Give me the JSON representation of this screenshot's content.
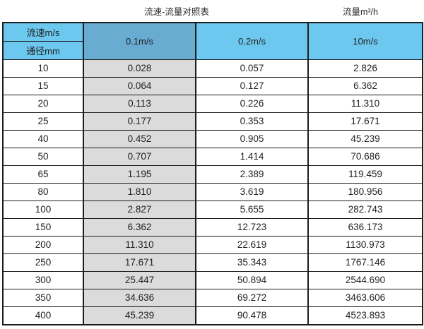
{
  "page": {
    "title_left": "流速-流量对照表",
    "title_right": "流量m³/h"
  },
  "table": {
    "corner": {
      "top": "流速m/s",
      "bottom": "通径mm"
    },
    "columns": [
      "0.1m/s",
      "0.2m/s",
      "10m/s"
    ],
    "rows": [
      {
        "dn": "10",
        "v1": "0.028",
        "v2": "0.057",
        "v3": "2.826"
      },
      {
        "dn": "15",
        "v1": "0.064",
        "v2": "0.127",
        "v3": "6.362"
      },
      {
        "dn": "20",
        "v1": "0.113",
        "v2": "0.226",
        "v3": "11.310"
      },
      {
        "dn": "25",
        "v1": "0.177",
        "v2": "0.353",
        "v3": "17.671"
      },
      {
        "dn": "40",
        "v1": "0.452",
        "v2": "0.905",
        "v3": "45.239"
      },
      {
        "dn": "50",
        "v1": "0.707",
        "v2": "1.414",
        "v3": "70.686"
      },
      {
        "dn": "65",
        "v1": "1.195",
        "v2": "2.389",
        "v3": "119.459"
      },
      {
        "dn": "80",
        "v1": "1.810",
        "v2": "3.619",
        "v3": "180.956"
      },
      {
        "dn": "100",
        "v1": "2.827",
        "v2": "5.655",
        "v3": "282.743"
      },
      {
        "dn": "150",
        "v1": "6.362",
        "v2": "12.723",
        "v3": "636.173"
      },
      {
        "dn": "200",
        "v1": "11.310",
        "v2": "22.619",
        "v3": "1130.973"
      },
      {
        "dn": "250",
        "v1": "17.671",
        "v2": "35.343",
        "v3": "1767.146"
      },
      {
        "dn": "300",
        "v1": "25.447",
        "v2": "50.894",
        "v3": "2544.690"
      },
      {
        "dn": "350",
        "v1": "34.636",
        "v2": "69.272",
        "v3": "3463.606"
      },
      {
        "dn": "400",
        "v1": "45.239",
        "v2": "90.478",
        "v3": "4523.893"
      }
    ]
  },
  "colors": {
    "header_blue": "#6cc8ee",
    "header_dark_blue": "#68acd2",
    "gray_column": "#dbdbdb",
    "border": "#1c1c1c"
  },
  "chart_data": {
    "type": "table",
    "title": "流速-流量对照表",
    "unit_label": "流量m³/h",
    "row_axis_label": "通径mm",
    "col_axis_label": "流速m/s",
    "categories": [
      10,
      15,
      20,
      25,
      40,
      50,
      65,
      80,
      100,
      150,
      200,
      250,
      300,
      350,
      400
    ],
    "series": [
      {
        "name": "0.1m/s",
        "values": [
          0.028,
          0.064,
          0.113,
          0.177,
          0.452,
          0.707,
          1.195,
          1.81,
          2.827,
          6.362,
          11.31,
          17.671,
          25.447,
          34.636,
          45.239
        ]
      },
      {
        "name": "0.2m/s",
        "values": [
          0.057,
          0.127,
          0.226,
          0.353,
          0.905,
          1.414,
          2.389,
          3.619,
          5.655,
          12.723,
          22.619,
          35.343,
          50.894,
          69.272,
          90.478
        ]
      },
      {
        "name": "10m/s",
        "values": [
          2.826,
          6.362,
          11.31,
          17.671,
          45.239,
          70.686,
          119.459,
          180.956,
          282.743,
          636.173,
          1130.973,
          1767.146,
          2544.69,
          3463.606,
          4523.893
        ]
      }
    ]
  }
}
